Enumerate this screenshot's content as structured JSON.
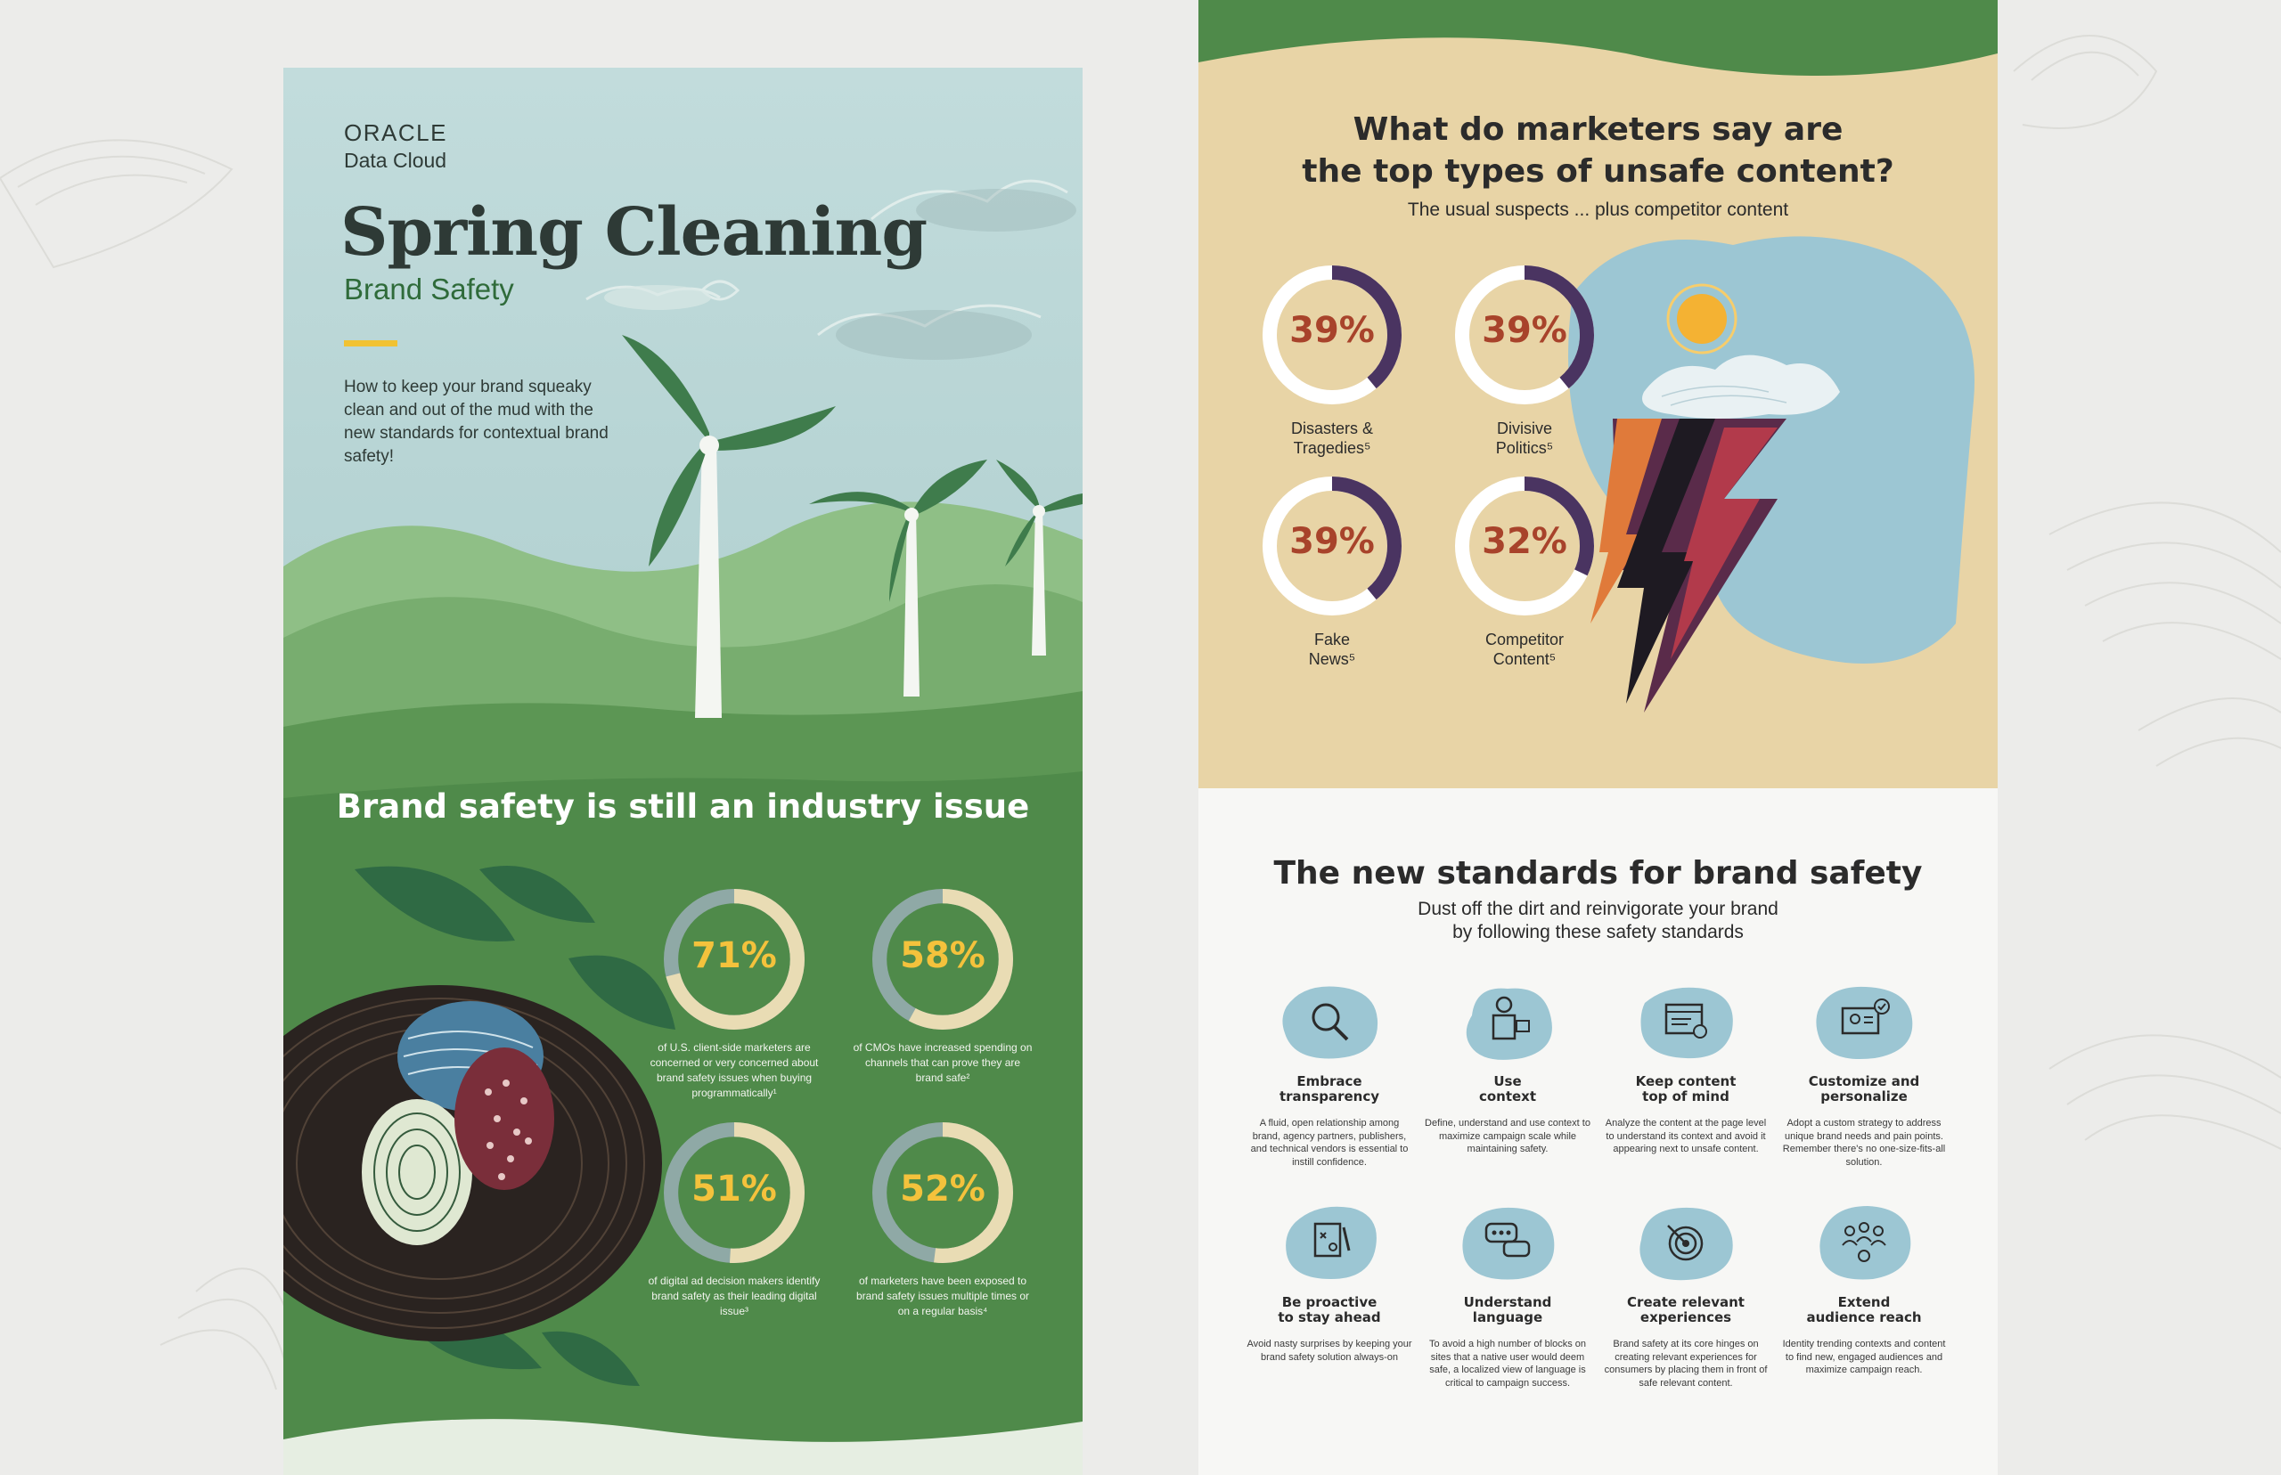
{
  "left": {
    "logo": {
      "brand": "ORACLE",
      "product": "Data Cloud"
    },
    "title": "Spring Cleaning",
    "subtitle": "Brand Safety",
    "intro": "How to keep your brand squeaky clean and out of the mud with the new standards for contextual brand safety!",
    "section_heading": "Brand safety is still an industry issue",
    "stats": [
      {
        "value": "71%",
        "fraction": 0.71,
        "caption": "of U.S. client-side marketers are concerned or very concerned about brand safety issues when buying programmatically¹"
      },
      {
        "value": "58%",
        "fraction": 0.58,
        "caption": "of CMOs have increased spending on channels that can prove they are brand safe²"
      },
      {
        "value": "51%",
        "fraction": 0.51,
        "caption": "of digital ad decision makers identify brand safety as their leading digital issue³"
      },
      {
        "value": "52%",
        "fraction": 0.52,
        "caption": "of marketers have been exposed to brand safety issues multiple times or on a regular basis⁴"
      }
    ],
    "colors": {
      "ring_fill": "#e9dcb4",
      "ring_track": "#8fa9a6",
      "percent": "#f4c23c"
    }
  },
  "right": {
    "title_line1": "What do marketers say are",
    "title_line2": "the top types of unsafe content?",
    "subtitle": "The usual suspects ... plus competitor content",
    "stats": [
      {
        "value": "39%",
        "fraction": 0.39,
        "label_line1": "Disasters &",
        "label_line2": "Tragedies⁵"
      },
      {
        "value": "39%",
        "fraction": 0.39,
        "label_line1": "Divisive",
        "label_line2": "Politics⁵"
      },
      {
        "value": "39%",
        "fraction": 0.39,
        "label_line1": "Fake",
        "label_line2": "News⁵"
      },
      {
        "value": "32%",
        "fraction": 0.32,
        "label_line1": "Competitor",
        "label_line2": "Content⁵"
      }
    ],
    "colors": {
      "ring_fill": "#4a3461",
      "ring_track": "#ffffff",
      "percent": "#a8432b"
    },
    "standards_title": "The new standards for brand safety",
    "standards_sub_line1": "Dust off the dirt and reinvigorate your brand",
    "standards_sub_line2": "by following these safety standards",
    "standards": [
      {
        "icon": "magnifier-icon",
        "label_line1": "Embrace",
        "label_line2": "transparency",
        "desc": "A fluid, open relationship among brand, agency partners, publishers, and technical vendors is essential to instill confidence."
      },
      {
        "icon": "context-icon",
        "label_line1": "Use",
        "label_line2": "context",
        "desc": "Define, understand and use context to maximize campaign scale while maintaining safety."
      },
      {
        "icon": "content-window-icon",
        "label_line1": "Keep content",
        "label_line2": "top of mind",
        "desc": "Analyze the content at the page level to understand its context and avoid it appearing next to unsafe content."
      },
      {
        "icon": "profile-card-icon",
        "label_line1": "Customize and",
        "label_line2": "personalize",
        "desc": "Adopt a custom strategy to address unique brand needs and pain points. Remember there's no one-size-fits-all solution."
      },
      {
        "icon": "strategy-board-icon",
        "label_line1": "Be proactive",
        "label_line2": "to stay ahead",
        "desc": "Avoid nasty surprises by keeping your brand safety solution always-on"
      },
      {
        "icon": "speech-bubbles-icon",
        "label_line1": "Understand",
        "label_line2": "language",
        "desc": "To avoid a high number of blocks on sites that a native user would deem safe, a localized view of language is critical to campaign success."
      },
      {
        "icon": "target-icon",
        "label_line1": "Create relevant",
        "label_line2": "experiences",
        "desc": "Brand safety at its core hinges on creating relevant experiences for consumers by placing them in front of safe relevant content."
      },
      {
        "icon": "audience-icon",
        "label_line1": "Extend",
        "label_line2": "audience reach",
        "desc": "Identity trending contexts and content to find new, engaged audiences and maximize campaign reach."
      }
    ],
    "blob_color": "#9cc6d3"
  }
}
